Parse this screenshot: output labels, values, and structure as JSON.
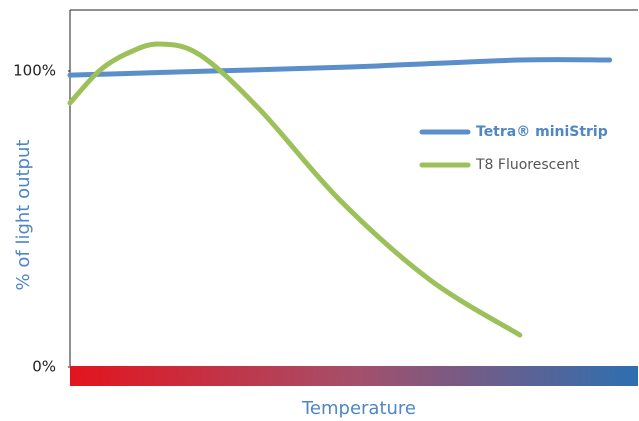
{
  "chart_data": {
    "type": "line",
    "x_label": "Temperature",
    "y_label": "% of light output",
    "xlim": [
      0,
      100
    ],
    "ylim": [
      0,
      120
    ],
    "yticks": [
      {
        "value": 0,
        "label": "0%"
      },
      {
        "value": 100,
        "label": "100%"
      }
    ],
    "legend": "right",
    "series": [
      {
        "name": "Tetra® miniStrip",
        "color": "#5b8fc9",
        "bold": true,
        "x": [
          0,
          25,
          50,
          79,
          95
        ],
        "values": [
          98.6,
          100,
          101.4,
          103.7,
          103.7
        ]
      },
      {
        "name": "T8 Fluorescent",
        "color": "#9cc15a",
        "bold": false,
        "x": [
          0,
          5.3,
          10.6,
          15.8,
          22.9,
          33.5,
          47.5,
          63.4,
          79.2
        ],
        "values": [
          89.2,
          100.3,
          106.4,
          109.1,
          105.4,
          86.8,
          56.4,
          29.4,
          10.8
        ]
      }
    ]
  }
}
